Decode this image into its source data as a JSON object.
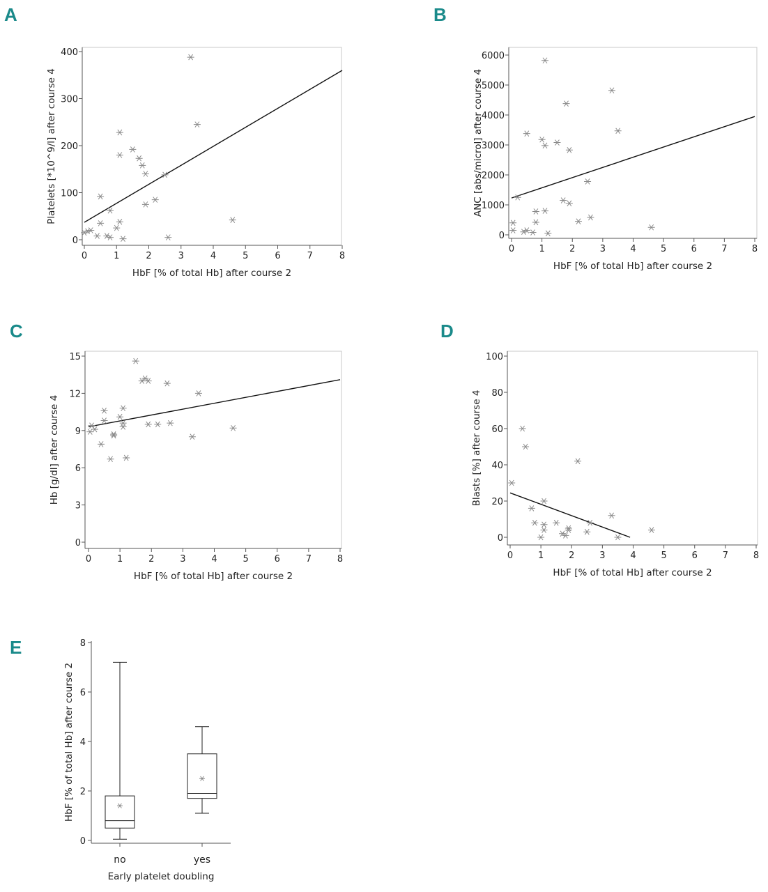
{
  "chart_data": [
    {
      "panel": "A",
      "type": "scatter",
      "xlabel": "HbF [% of total Hb] after course 2",
      "ylabel": "Platelets [*10^9/l] after course 4",
      "xlim": [
        0,
        8
      ],
      "ylim": [
        0,
        400
      ],
      "xticks": [
        0,
        1,
        2,
        3,
        4,
        5,
        6,
        7,
        8
      ],
      "yticks": [
        0,
        100,
        200,
        300,
        400
      ],
      "points": [
        [
          0.0,
          15
        ],
        [
          0.1,
          18
        ],
        [
          0.2,
          20
        ],
        [
          0.4,
          8
        ],
        [
          0.5,
          35
        ],
        [
          0.5,
          92
        ],
        [
          0.7,
          8
        ],
        [
          0.8,
          5
        ],
        [
          0.8,
          62
        ],
        [
          1.0,
          25
        ],
        [
          1.1,
          38
        ],
        [
          1.1,
          180
        ],
        [
          1.1,
          228
        ],
        [
          1.2,
          2
        ],
        [
          1.5,
          192
        ],
        [
          1.7,
          173
        ],
        [
          1.8,
          158
        ],
        [
          1.9,
          140
        ],
        [
          1.9,
          75
        ],
        [
          2.2,
          85
        ],
        [
          2.5,
          138
        ],
        [
          2.6,
          5
        ],
        [
          3.3,
          388
        ],
        [
          3.5,
          245
        ],
        [
          4.6,
          42
        ]
      ],
      "fit_line": [
        [
          0,
          37
        ],
        [
          8,
          360
        ]
      ]
    },
    {
      "panel": "B",
      "type": "scatter",
      "xlabel": "HbF [% of total Hb] after course 2",
      "ylabel": "ANC [abs/microl] after course 4",
      "xlim": [
        0,
        8
      ],
      "ylim": [
        0,
        6000
      ],
      "xticks": [
        0,
        1,
        2,
        3,
        4,
        5,
        6,
        7,
        8
      ],
      "yticks": [
        0,
        1000,
        2000,
        3000,
        4000,
        5000,
        6000
      ],
      "points": [
        [
          0.05,
          150
        ],
        [
          0.05,
          400
        ],
        [
          0.2,
          1250
        ],
        [
          0.4,
          100
        ],
        [
          0.5,
          150
        ],
        [
          0.5,
          3380
        ],
        [
          0.7,
          80
        ],
        [
          0.8,
          420
        ],
        [
          0.8,
          780
        ],
        [
          1.0,
          3180
        ],
        [
          1.1,
          2980
        ],
        [
          1.1,
          800
        ],
        [
          1.1,
          5820
        ],
        [
          1.2,
          50
        ],
        [
          1.5,
          3080
        ],
        [
          1.7,
          1150
        ],
        [
          1.8,
          4380
        ],
        [
          1.9,
          1050
        ],
        [
          1.9,
          2830
        ],
        [
          2.2,
          450
        ],
        [
          2.5,
          1780
        ],
        [
          2.6,
          580
        ],
        [
          3.3,
          4820
        ],
        [
          3.5,
          3470
        ],
        [
          4.6,
          250
        ]
      ],
      "fit_line": [
        [
          0,
          1230
        ],
        [
          8,
          3950
        ]
      ]
    },
    {
      "panel": "C",
      "type": "scatter",
      "xlabel": "HbF [% of total Hb] after course 2",
      "ylabel": "Hb [g/dl] after course 4",
      "xlim": [
        0,
        8
      ],
      "ylim": [
        0,
        15
      ],
      "xticks": [
        0,
        1,
        2,
        3,
        4,
        5,
        6,
        7,
        8
      ],
      "yticks": [
        0,
        3,
        6,
        9,
        12,
        15
      ],
      "points": [
        [
          0.05,
          8.9
        ],
        [
          0.1,
          9.4
        ],
        [
          0.2,
          9.1
        ],
        [
          0.4,
          7.9
        ],
        [
          0.5,
          9.8
        ],
        [
          0.5,
          10.6
        ],
        [
          0.7,
          6.7
        ],
        [
          0.8,
          8.6
        ],
        [
          0.8,
          8.7
        ],
        [
          1.0,
          10.1
        ],
        [
          1.1,
          10.8
        ],
        [
          1.1,
          9.6
        ],
        [
          1.1,
          9.3
        ],
        [
          1.2,
          6.8
        ],
        [
          1.5,
          14.6
        ],
        [
          1.7,
          13.0
        ],
        [
          1.8,
          13.2
        ],
        [
          1.9,
          13.0
        ],
        [
          1.9,
          9.5
        ],
        [
          2.2,
          9.5
        ],
        [
          2.5,
          12.8
        ],
        [
          2.6,
          9.6
        ],
        [
          3.3,
          8.5
        ],
        [
          3.5,
          12.0
        ],
        [
          4.6,
          9.2
        ]
      ],
      "fit_line": [
        [
          0,
          9.3
        ],
        [
          8,
          13.1
        ]
      ]
    },
    {
      "panel": "D",
      "type": "scatter",
      "xlabel": "HbF [% of total Hb] after course 2",
      "ylabel": "Blasts [%] after course 4",
      "xlim": [
        0,
        8
      ],
      "ylim": [
        0,
        100
      ],
      "xticks": [
        0,
        1,
        2,
        3,
        4,
        5,
        6,
        7,
        8
      ],
      "yticks": [
        0,
        20,
        40,
        60,
        80,
        100
      ],
      "points": [
        [
          0.05,
          30
        ],
        [
          0.4,
          60
        ],
        [
          0.5,
          50
        ],
        [
          0.7,
          16
        ],
        [
          0.8,
          8
        ],
        [
          1.0,
          0
        ],
        [
          1.1,
          20
        ],
        [
          1.1,
          7
        ],
        [
          1.1,
          4
        ],
        [
          1.5,
          8
        ],
        [
          1.7,
          2
        ],
        [
          1.8,
          1
        ],
        [
          1.9,
          5
        ],
        [
          1.9,
          4
        ],
        [
          2.2,
          42
        ],
        [
          2.5,
          3
        ],
        [
          2.6,
          8
        ],
        [
          3.3,
          12
        ],
        [
          3.5,
          0
        ],
        [
          4.6,
          4
        ]
      ],
      "fit_line": [
        [
          0,
          24.5
        ],
        [
          3.9,
          0
        ]
      ]
    },
    {
      "panel": "E",
      "type": "box",
      "xlabel": "Early platelet doubling",
      "ylabel": "HbF [% of total Hb] after course 2",
      "ylim": [
        0,
        8
      ],
      "yticks": [
        0,
        2,
        4,
        6,
        8
      ],
      "categories": [
        "no",
        "yes"
      ],
      "boxes": [
        {
          "min": 0.05,
          "q1": 0.5,
          "median": 0.8,
          "q3": 1.8,
          "max": 7.2,
          "mean": 1.4
        },
        {
          "min": 1.1,
          "q1": 1.7,
          "median": 1.9,
          "q3": 3.5,
          "max": 4.6,
          "mean": 2.5
        }
      ]
    }
  ]
}
